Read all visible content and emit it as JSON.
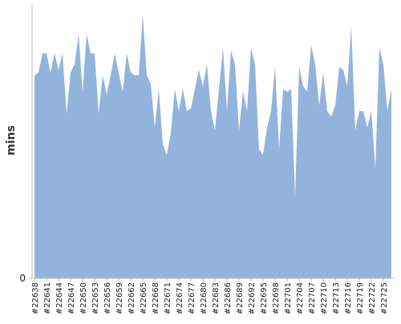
{
  "chart_data": {
    "type": "area",
    "ylabel": "mins",
    "color": "#92b4dc",
    "categories": [
      "#22638",
      null,
      null,
      "#22641",
      null,
      null,
      "#22644",
      null,
      null,
      "#22647",
      null,
      null,
      "#22650",
      null,
      null,
      "#22653",
      null,
      null,
      "#22656",
      null,
      null,
      "#22659",
      null,
      null,
      "#22662",
      null,
      null,
      "#22665",
      null,
      null,
      "#22668",
      null,
      null,
      "#22671",
      null,
      null,
      "#22674",
      null,
      null,
      "#22677",
      null,
      null,
      "#22680",
      null,
      null,
      "#22683",
      null,
      null,
      "#22686",
      null,
      null,
      "#22689",
      null,
      null,
      "#22692",
      null,
      null,
      "#22695",
      null,
      null,
      "#22698",
      null,
      null,
      "#22701",
      null,
      null,
      "#22704",
      null,
      null,
      "#22707",
      null,
      null,
      "#22710",
      null,
      null,
      "#22713",
      null,
      null,
      "#22716",
      null,
      null,
      "#22719",
      null,
      null,
      "#22722",
      null,
      null,
      "#22725",
      null,
      null
    ],
    "values": [
      74,
      75,
      82,
      82,
      75,
      82,
      76,
      82,
      60,
      75,
      78,
      89,
      68,
      89,
      82,
      82,
      60,
      74,
      67,
      74,
      82,
      75,
      68,
      82,
      75,
      74,
      74,
      96,
      74,
      71,
      55,
      69,
      49,
      45,
      53,
      69,
      61,
      69,
      61,
      62,
      69,
      76,
      70,
      78,
      61,
      54,
      69,
      84,
      61,
      83,
      78,
      54,
      68,
      61,
      84,
      78,
      47,
      45,
      55,
      61,
      77,
      47,
      69,
      68,
      69,
      30,
      77,
      70,
      68,
      85,
      78,
      63,
      75,
      61,
      59,
      63,
      77,
      76,
      70,
      92,
      54,
      61,
      61,
      55,
      61,
      40,
      84,
      78,
      61,
      69
    ],
    "ylim": [
      0,
      100
    ],
    "yticks": [
      0
    ]
  }
}
